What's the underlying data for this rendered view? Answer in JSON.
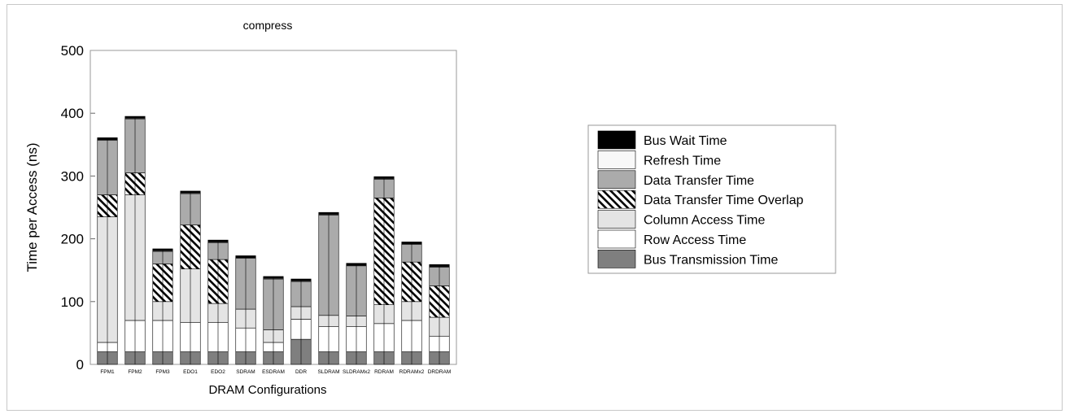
{
  "chart_data": {
    "type": "bar",
    "stacked": true,
    "title": "compress",
    "xlabel": "DRAM Configurations",
    "ylabel": "Time per Access (ns)",
    "ylim": [
      0,
      500
    ],
    "yticks": [
      0,
      100,
      200,
      300,
      400,
      500
    ],
    "grid": false,
    "legend_position": "right",
    "categories": [
      "FPM1",
      "FPM2",
      "FPM3",
      "EDO1",
      "EDO2",
      "SDRAM",
      "ESDRAM",
      "DDR",
      "SLDRAM",
      "SLDRAMx2",
      "RDRAM",
      "RDRAMx2",
      "DRDRAM"
    ],
    "legend": [
      "Bus Wait Time",
      "Refresh Time",
      "Data Transfer Time",
      "Data Transfer Time Overlap",
      "Column Access Time",
      "Row Access Time",
      "Bus Transmission Time"
    ],
    "colors": {
      "bus_wait": "#000000",
      "refresh": "#f8f8f8",
      "data_transfer": "#ababab",
      "overlap": "#ffffff",
      "column_access": "#e4e4e4",
      "row_access": "#ffffff",
      "bus_transmission": "#7f7f7f"
    },
    "series": [
      {
        "name": "Bus Transmission Time",
        "values": [
          20,
          20,
          20,
          20,
          20,
          20,
          20,
          40,
          20,
          20,
          20,
          20,
          20
        ]
      },
      {
        "name": "Row Access Time",
        "values": [
          15,
          50,
          50,
          47,
          47,
          38,
          15,
          32,
          40,
          40,
          45,
          50,
          25
        ]
      },
      {
        "name": "Column Access Time",
        "values": [
          200,
          200,
          30,
          85,
          30,
          30,
          20,
          20,
          18,
          17,
          30,
          30,
          30
        ]
      },
      {
        "name": "Data Transfer Time Overlap",
        "values": [
          35,
          35,
          60,
          70,
          70,
          0,
          0,
          0,
          0,
          0,
          170,
          63,
          50
        ]
      },
      {
        "name": "Data Transfer Time",
        "values": [
          87,
          86,
          20,
          50,
          27,
          81,
          81,
          40,
          160,
          80,
          30,
          28,
          30
        ]
      },
      {
        "name": "Refresh Time",
        "values": [
          1,
          1,
          1,
          1,
          1,
          1,
          1,
          1,
          1,
          1,
          1,
          1,
          1
        ]
      },
      {
        "name": "Bus Wait Time",
        "values": [
          3,
          3,
          3,
          3,
          3,
          3,
          3,
          3,
          3,
          3,
          3,
          3,
          3
        ]
      }
    ]
  }
}
